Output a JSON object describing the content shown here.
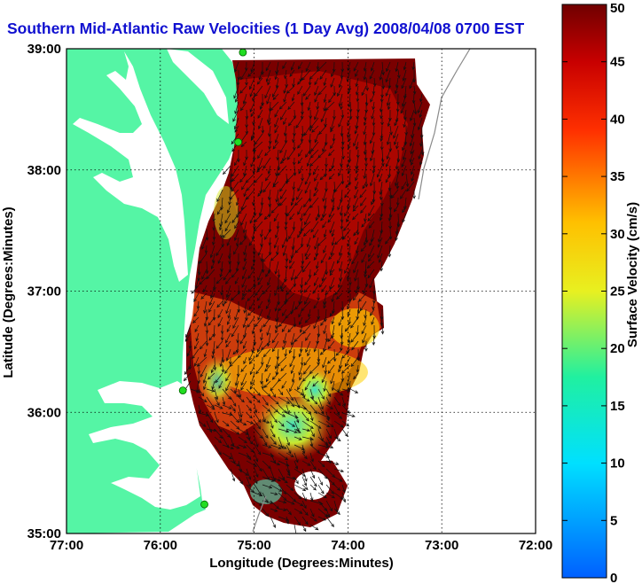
{
  "title": "Southern Mid-Atlantic Raw Velocities (1 Day Avg) 2008/04/08 0700 EST",
  "axes": {
    "xlabel": "Longitude (Degrees:Minutes)",
    "ylabel": "Latitude (Degrees:Minutes)",
    "x_ticks": [
      "77:00",
      "76:00",
      "75:00",
      "74:00",
      "73:00",
      "72:00"
    ],
    "y_ticks": [
      "39:00",
      "38:00",
      "37:00",
      "36:00",
      "35:00"
    ],
    "x_values": [
      -77,
      -76,
      -75,
      -74,
      -73,
      -72
    ],
    "y_values": [
      39,
      38,
      37,
      36,
      35
    ],
    "xlim": [
      -77,
      -72
    ],
    "ylim": [
      35,
      39
    ],
    "grid": "dotted"
  },
  "colorbar": {
    "label": "Surface Velocity (cm/s)",
    "ticks": [
      "0",
      "5",
      "10",
      "15",
      "20",
      "25",
      "30",
      "35",
      "40",
      "45",
      "50"
    ],
    "range": [
      0,
      50
    ],
    "colormap": "jet"
  },
  "colors": {
    "land": "#55f5a5",
    "title": "#1010d0",
    "station": "#22dd22"
  },
  "stations": [
    {
      "lon": -75.12,
      "lat": 38.97
    },
    {
      "lon": -75.17,
      "lat": 38.23
    },
    {
      "lon": -75.76,
      "lat": 36.18
    },
    {
      "lon": -75.53,
      "lat": 35.24
    }
  ]
}
